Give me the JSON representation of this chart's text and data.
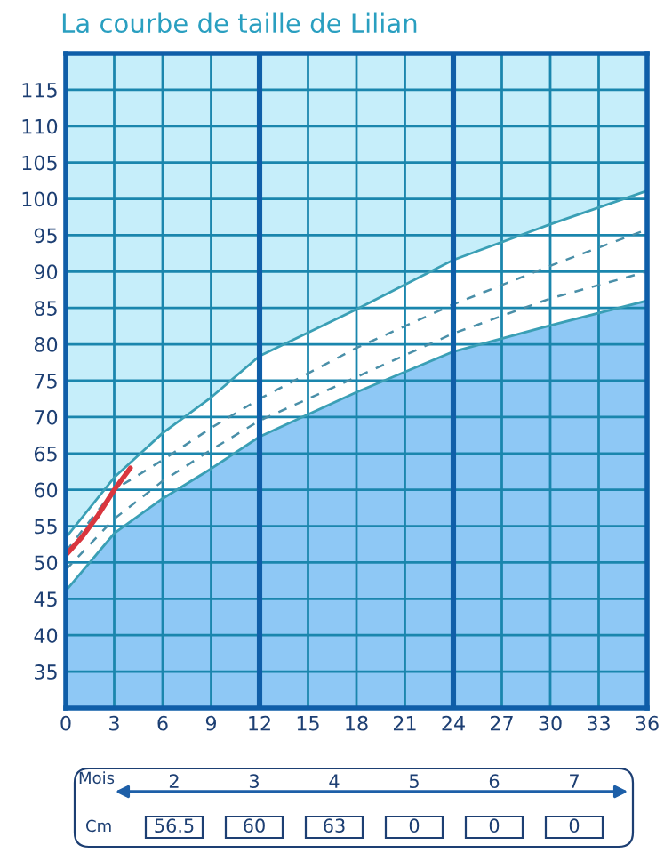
{
  "chart_data": {
    "type": "line",
    "title": "La courbe de taille de Lilian",
    "x": [
      0,
      3,
      6,
      9,
      12,
      18,
      24,
      30,
      36
    ],
    "series": [
      {
        "type": "area",
        "color": "#ffffff",
        "line_style": "solid",
        "values": [
          53.4,
          61.7,
          67.8,
          72.7,
          78.4,
          84.8,
          91.6,
          96.5,
          101.1
        ]
      },
      {
        "type": "line",
        "color": "#4a8fa8",
        "line_style": "dashed",
        "values": [
          51.5,
          60,
          64.1,
          68.5,
          72.5,
          79.5,
          85.5,
          90.8,
          95.8
        ]
      },
      {
        "type": "line",
        "color": "#4a8fa8",
        "line_style": "dashed",
        "values": [
          49,
          56,
          61.2,
          65.5,
          69.5,
          75.5,
          81.5,
          86.3,
          90
        ]
      },
      {
        "type": "area",
        "color": "#8ec8f5",
        "line_style": "solid",
        "values": [
          46.1,
          54,
          58.8,
          62.9,
          67.3,
          73.4,
          79,
          82.6,
          86
        ]
      },
      {
        "type": "line",
        "color": "#d9363e",
        "line_style": "solid",
        "x": [
          0,
          1,
          2,
          3,
          4
        ],
        "values": [
          51,
          53.5,
          56.5,
          60,
          63
        ]
      }
    ],
    "xlim": [
      0,
      36
    ],
    "xticks": [
      0,
      3,
      6,
      9,
      12,
      15,
      18,
      21,
      24,
      27,
      30,
      33,
      36
    ],
    "ylim": [
      30,
      120
    ],
    "yticks": [
      {
        "value": 30,
        "label": null
      },
      35,
      40,
      45,
      50,
      55,
      60,
      65,
      70,
      75,
      80,
      85,
      90,
      95,
      100,
      105,
      110,
      115,
      {
        "value": 120,
        "label": null
      }
    ],
    "grid": true,
    "bands": [
      {
        "axis": "x",
        "from": 0,
        "to": 36,
        "color": "#c6eefa"
      }
    ],
    "annotations": [
      "Mois",
      "2",
      "3",
      "4",
      "5",
      "6",
      "7",
      "Cm",
      "56.5",
      "60",
      "63",
      "0",
      "0",
      "0"
    ]
  }
}
